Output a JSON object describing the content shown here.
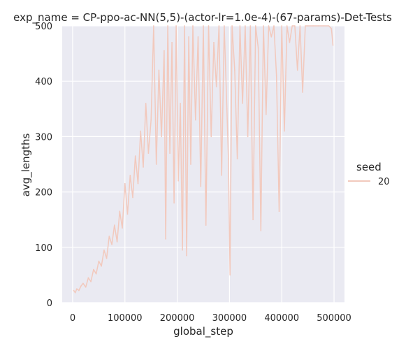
{
  "chart_data": {
    "type": "line",
    "title": "exp_name = CP-ppo-ac-NN(5,5)-(actor-lr=1.0e-4)-(67-params)-Det-Tests",
    "xlabel": "global_step",
    "ylabel": "avg_lengths",
    "xlim": [
      -20000,
      520000
    ],
    "ylim": [
      0,
      500
    ],
    "xticks": [
      0,
      100000,
      200000,
      300000,
      400000,
      500000
    ],
    "yticks": [
      0,
      100,
      200,
      300,
      400,
      500
    ],
    "grid": true,
    "background": "#eaeaf2",
    "legend": {
      "title": "seed",
      "placement": "right",
      "entries": [
        "20"
      ]
    },
    "series": [
      {
        "name": "20",
        "color": "#f2c9bd",
        "x": [
          2000,
          5000,
          8000,
          12000,
          16000,
          20000,
          25000,
          30000,
          35000,
          40000,
          45000,
          50000,
          55000,
          60000,
          65000,
          70000,
          75000,
          80000,
          85000,
          90000,
          95000,
          100000,
          105000,
          110000,
          115000,
          120000,
          125000,
          130000,
          135000,
          140000,
          145000,
          150000,
          155000,
          160000,
          165000,
          170000,
          175000,
          178000,
          182000,
          186000,
          190000,
          194000,
          198000,
          202000,
          206000,
          210000,
          214000,
          218000,
          222000,
          226000,
          230000,
          235000,
          240000,
          245000,
          250000,
          255000,
          260000,
          265000,
          270000,
          275000,
          280000,
          285000,
          290000,
          295000,
          298000,
          301000,
          305000,
          310000,
          315000,
          320000,
          325000,
          330000,
          335000,
          340000,
          345000,
          350000,
          355000,
          360000,
          365000,
          370000,
          375000,
          380000,
          385000,
          390000,
          395000,
          400000,
          405000,
          410000,
          415000,
          420000,
          425000,
          430000,
          435000,
          440000,
          445000,
          450000,
          460000,
          470000,
          480000,
          490000,
          495000,
          498000
        ],
        "values": [
          22,
          18,
          25,
          22,
          30,
          35,
          28,
          45,
          38,
          60,
          52,
          75,
          66,
          95,
          80,
          120,
          105,
          140,
          110,
          165,
          135,
          215,
          160,
          230,
          190,
          265,
          215,
          310,
          245,
          360,
          270,
          330,
          500,
          250,
          420,
          300,
          455,
          115,
          500,
          270,
          470,
          180,
          500,
          220,
          360,
          95,
          500,
          85,
          480,
          250,
          500,
          330,
          480,
          210,
          500,
          140,
          500,
          300,
          470,
          390,
          500,
          230,
          500,
          350,
          260,
          50,
          500,
          420,
          260,
          500,
          360,
          500,
          300,
          500,
          150,
          500,
          460,
          130,
          500,
          340,
          500,
          480,
          500,
          410,
          165,
          500,
          310,
          500,
          470,
          500,
          500,
          420,
          500,
          380,
          500,
          500,
          500,
          500,
          500,
          500,
          495,
          465
        ]
      }
    ]
  }
}
